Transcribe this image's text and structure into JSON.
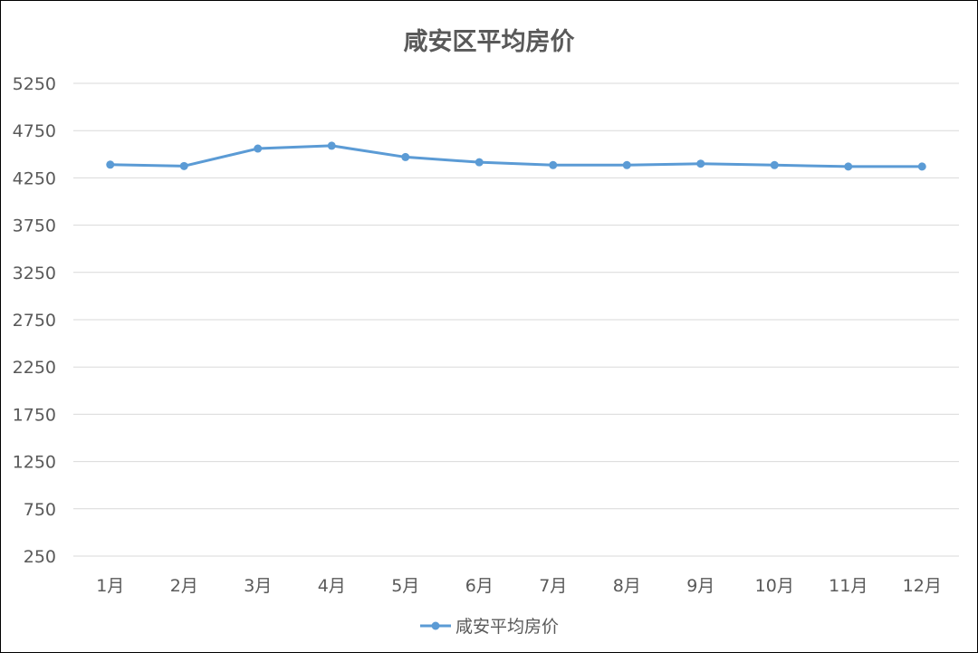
{
  "chart_data": {
    "type": "line",
    "title": "咸安区平均房价",
    "xlabel": "",
    "ylabel": "",
    "categories": [
      "1月",
      "2月",
      "3月",
      "4月",
      "5月",
      "6月",
      "7月",
      "8月",
      "9月",
      "10月",
      "11月",
      "12月"
    ],
    "y_ticks": [
      "5250",
      "4750",
      "4250",
      "3750",
      "3250",
      "2750",
      "2250",
      "1750",
      "1250",
      "750",
      "250"
    ],
    "ylim": [
      250,
      5250
    ],
    "grid": true,
    "legend_position": "bottom",
    "series": [
      {
        "name": "咸安平均房价",
        "color": "#5b9bd5",
        "values": [
          4390,
          4375,
          4560,
          4590,
          4470,
          4415,
          4385,
          4385,
          4400,
          4385,
          4370,
          4370
        ]
      }
    ]
  }
}
